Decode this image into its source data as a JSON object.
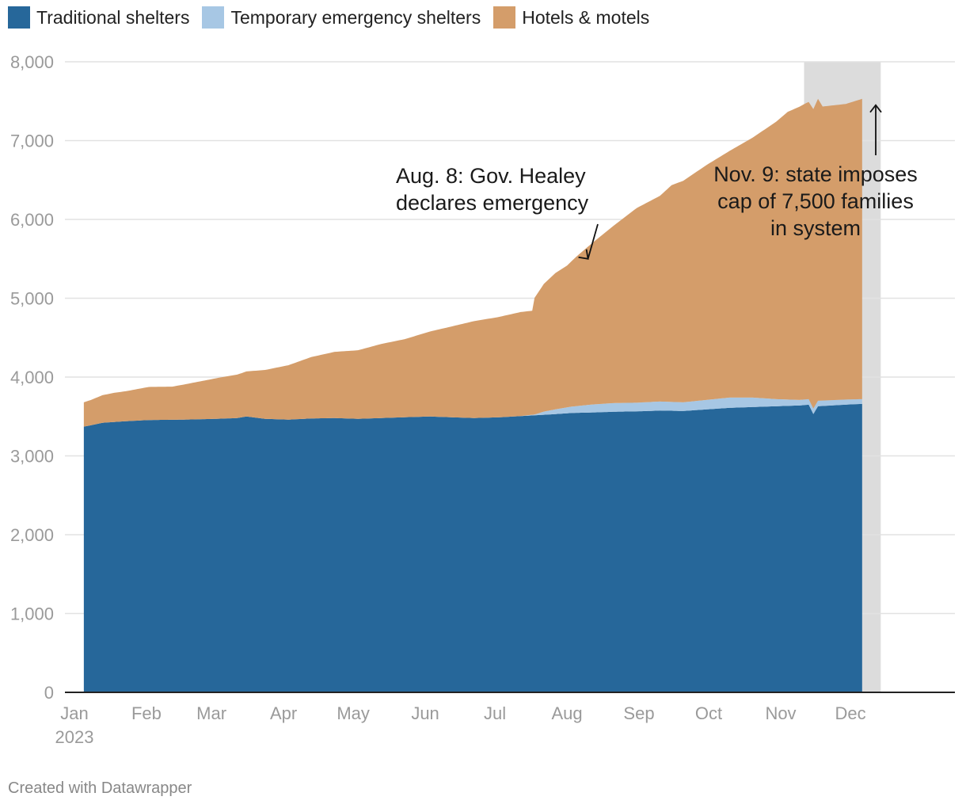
{
  "legend": [
    {
      "label": "Traditional shelters",
      "color": "#26679a"
    },
    {
      "label": "Temporary emergency shelters",
      "color": "#a7c7e4"
    },
    {
      "label": "Hotels & motels",
      "color": "#d49d6a"
    }
  ],
  "credit": "Created with Datawrapper",
  "chart_data": {
    "type": "area",
    "stacked": true,
    "title": "",
    "xlabel": "",
    "ylabel": "",
    "ylim": [
      0,
      8000
    ],
    "yticks": [
      "0",
      "1,000",
      "2,000",
      "3,000",
      "4,000",
      "5,000",
      "6,000",
      "7,000",
      "8,000"
    ],
    "ytick_values": [
      0,
      1000,
      2000,
      3000,
      4000,
      5000,
      6000,
      7000,
      8000
    ],
    "xticks": [
      "Jan",
      "Feb",
      "Mar",
      "Apr",
      "May",
      "Jun",
      "Jul",
      "Aug",
      "Sep",
      "Oct",
      "Nov",
      "Dec"
    ],
    "xtick_year": "2023",
    "x_range_days": [
      0,
      334
    ],
    "x_tick_days": [
      0,
      31,
      59,
      90,
      120,
      151,
      181,
      212,
      243,
      273,
      304,
      334
    ],
    "x_day_label": "days since Jan 1, 2023",
    "series": [
      {
        "name": "Traditional shelters",
        "color": "#26679a",
        "x": [
          2,
          10,
          20,
          30,
          45,
          59,
          68,
          72,
          80,
          90,
          100,
          110,
          120,
          130,
          140,
          151,
          160,
          170,
          181,
          196,
          205,
          212,
          220,
          230,
          240,
          250,
          260,
          270,
          280,
          290,
          300,
          310,
          314,
          316,
          318,
          330,
          337
        ],
        "values": [
          3370,
          3420,
          3440,
          3455,
          3460,
          3470,
          3480,
          3500,
          3470,
          3460,
          3475,
          3480,
          3470,
          3480,
          3490,
          3500,
          3490,
          3480,
          3490,
          3515,
          3530,
          3545,
          3550,
          3560,
          3565,
          3575,
          3570,
          3590,
          3610,
          3620,
          3630,
          3640,
          3650,
          3530,
          3630,
          3650,
          3660
        ]
      },
      {
        "name": "Temporary emergency shelters",
        "color": "#a7c7e4",
        "x": [
          2,
          190,
          196,
          200,
          205,
          212,
          220,
          230,
          240,
          250,
          260,
          270,
          280,
          290,
          300,
          310,
          314,
          318,
          330,
          337
        ],
        "values": [
          0,
          0,
          10,
          40,
          60,
          80,
          100,
          110,
          110,
          115,
          110,
          120,
          130,
          120,
          90,
          70,
          70,
          70,
          65,
          60
        ]
      },
      {
        "name": "Hotels & motels",
        "color": "#d49d6a",
        "x": [
          2,
          5,
          10,
          15,
          20,
          25,
          30,
          40,
          50,
          60,
          70,
          80,
          90,
          100,
          110,
          120,
          130,
          140,
          150,
          160,
          170,
          180,
          190,
          195,
          196,
          200,
          205,
          210,
          215,
          220,
          225,
          230,
          240,
          250,
          255,
          260,
          270,
          280,
          290,
          300,
          305,
          310,
          313,
          314,
          318,
          320,
          330,
          337
        ],
        "values": [
          310,
          320,
          350,
          370,
          380,
          400,
          420,
          420,
          470,
          520,
          560,
          620,
          690,
          780,
          840,
          870,
          940,
          990,
          1070,
          1150,
          1230,
          1270,
          1320,
          1320,
          1480,
          1620,
          1730,
          1800,
          1920,
          2030,
          2140,
          2250,
          2470,
          2610,
          2750,
          2810,
          2980,
          3130,
          3300,
          3520,
          3650,
          3720,
          3760,
          3770,
          3830,
          3730,
          3750,
          3810
        ]
      }
    ],
    "shaded_region": {
      "x_start_day": 312,
      "x_end_day": 345
    },
    "annotations": [
      {
        "id": "aug8",
        "lines": [
          "Aug. 8: Gov. Healey",
          "declares emergency"
        ],
        "arrow_to_day": 219,
        "arrow_to_value": 5500
      },
      {
        "id": "nov9",
        "lines": [
          "Nov. 9: state imposes",
          "cap of 7,500 families",
          "in system"
        ],
        "arrow_to_day": 312,
        "arrow_to_value": 7450
      }
    ]
  }
}
